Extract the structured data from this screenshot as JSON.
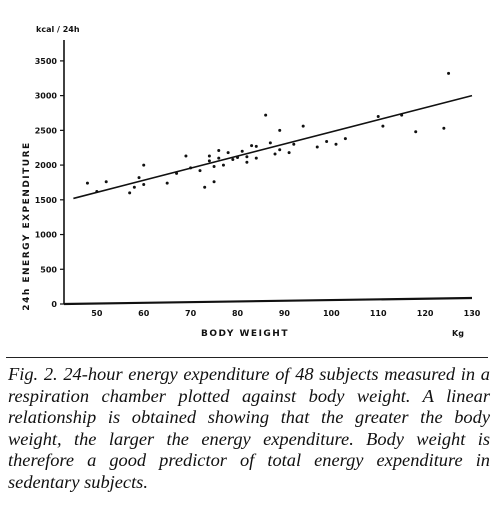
{
  "chart_data": {
    "type": "scatter",
    "title": "",
    "xlabel": "BODY WEIGHT",
    "xunit": "Kg",
    "ylabel": "24h ENERGY EXPENDITURE",
    "yunit": "kcal / 24h",
    "xlim": [
      43,
      130
    ],
    "ylim": [
      0,
      3700
    ],
    "xticks": [
      50,
      60,
      70,
      80,
      90,
      100,
      110,
      120,
      130
    ],
    "yticks": [
      0,
      500,
      1000,
      1500,
      2000,
      2500,
      3000,
      3500
    ],
    "grid": false,
    "legend": "none",
    "points": [
      [
        48,
        1740
      ],
      [
        50,
        1620
      ],
      [
        52,
        1760
      ],
      [
        57,
        1600
      ],
      [
        58,
        1680
      ],
      [
        59,
        1820
      ],
      [
        60,
        2000
      ],
      [
        60,
        1720
      ],
      [
        65,
        1740
      ],
      [
        67,
        1880
      ],
      [
        69,
        2130
      ],
      [
        70,
        1960
      ],
      [
        72,
        1920
      ],
      [
        73,
        1680
      ],
      [
        74,
        2130
      ],
      [
        74,
        2060
      ],
      [
        75,
        1980
      ],
      [
        75,
        1760
      ],
      [
        76,
        2210
      ],
      [
        76,
        2100
      ],
      [
        77,
        2000
      ],
      [
        78,
        2180
      ],
      [
        79,
        2080
      ],
      [
        80,
        2110
      ],
      [
        81,
        2200
      ],
      [
        82,
        2040
      ],
      [
        82,
        2120
      ],
      [
        83,
        2280
      ],
      [
        84,
        2270
      ],
      [
        84,
        2100
      ],
      [
        86,
        2720
      ],
      [
        87,
        2320
      ],
      [
        88,
        2160
      ],
      [
        89,
        2220
      ],
      [
        89,
        2500
      ],
      [
        91,
        2180
      ],
      [
        92,
        2300
      ],
      [
        94,
        2560
      ],
      [
        97,
        2260
      ],
      [
        99,
        2340
      ],
      [
        101,
        2300
      ],
      [
        103,
        2380
      ],
      [
        110,
        2700
      ],
      [
        111,
        2560
      ],
      [
        115,
        2720
      ],
      [
        118,
        2480
      ],
      [
        124,
        2530
      ],
      [
        125,
        3320
      ]
    ],
    "regression_line": {
      "x": [
        45,
        130
      ],
      "y": [
        1520,
        3000
      ]
    }
  },
  "caption": "Fig. 2. 24-hour energy expenditure of 48 subjects measured in a respiration chamber plotted against body weight. A linear relationship is obtained showing that the greater the body weight, the larger the energy expenditure. Body weight is therefore a good predictor of total energy expenditure in sedentary subjects."
}
